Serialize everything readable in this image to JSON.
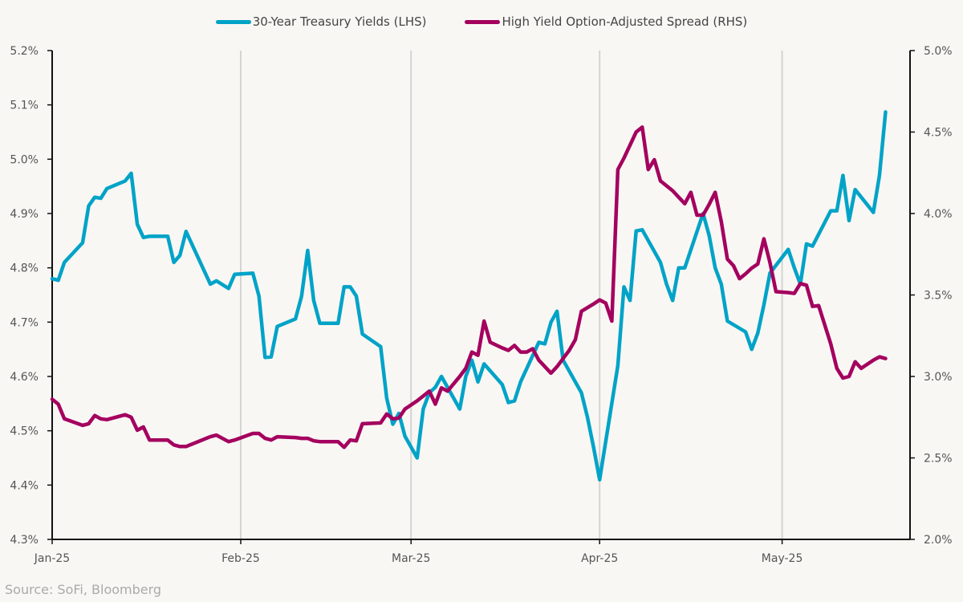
{
  "chart_data": {
    "type": "line",
    "title": "",
    "source": "Source: SoFi, Bloomberg",
    "x_unit": "days since 2025-01-01",
    "x_ticks": [
      {
        "day": 0,
        "label": "Jan-25"
      },
      {
        "day": 31,
        "label": "Feb-25"
      },
      {
        "day": 59,
        "label": "Mar-25"
      },
      {
        "day": 90,
        "label": "Apr-25"
      },
      {
        "day": 120,
        "label": "May-25"
      }
    ],
    "x_range": [
      0,
      141
    ],
    "y_left": {
      "label": "30-Year Treasury Yields (LHS)",
      "range": [
        4.3,
        5.2
      ],
      "ticks": [
        "4.3%",
        "4.4%",
        "4.5%",
        "4.6%",
        "4.7%",
        "4.8%",
        "4.9%",
        "5.0%",
        "5.1%",
        "5.2%"
      ],
      "tick_values": [
        4.3,
        4.4,
        4.5,
        4.6,
        4.7,
        4.8,
        4.9,
        5.0,
        5.1,
        5.2
      ]
    },
    "y_right": {
      "label": "High Yield Option-Adjusted Spread (RHS)",
      "range": [
        2.0,
        5.0
      ],
      "ticks": [
        "2.0%",
        "2.5%",
        "3.0%",
        "3.5%",
        "4.0%",
        "4.5%",
        "5.0%"
      ],
      "tick_values": [
        2.0,
        2.5,
        3.0,
        3.5,
        4.0,
        4.5,
        5.0
      ]
    },
    "legend_position": "top-center",
    "grid": "vertical at month starts",
    "series": [
      {
        "name": "30-Year Treasury Yields (LHS)",
        "axis": "left",
        "color": "#00a3c7",
        "points": [
          [
            0,
            4.78
          ],
          [
            1,
            4.777
          ],
          [
            2,
            4.81
          ],
          [
            5,
            4.846
          ],
          [
            6,
            4.914
          ],
          [
            7,
            4.93
          ],
          [
            8,
            4.928
          ],
          [
            9,
            4.946
          ],
          [
            12,
            4.96
          ],
          [
            13,
            4.974
          ],
          [
            14,
            4.88
          ],
          [
            15,
            4.856
          ],
          [
            16,
            4.858
          ],
          [
            19,
            4.858
          ],
          [
            20,
            4.81
          ],
          [
            21,
            4.823
          ],
          [
            22,
            4.867
          ],
          [
            26,
            4.77
          ],
          [
            27,
            4.776
          ],
          [
            29,
            4.762
          ],
          [
            30,
            4.788
          ],
          [
            33,
            4.79
          ],
          [
            34,
            4.748
          ],
          [
            35,
            4.635
          ],
          [
            36,
            4.636
          ],
          [
            37,
            4.692
          ],
          [
            40,
            4.706
          ],
          [
            41,
            4.748
          ],
          [
            42,
            4.832
          ],
          [
            43,
            4.74
          ],
          [
            44,
            4.698
          ],
          [
            47,
            4.698
          ],
          [
            48,
            4.765
          ],
          [
            49,
            4.765
          ],
          [
            50,
            4.748
          ],
          [
            51,
            4.678
          ],
          [
            54,
            4.655
          ],
          [
            55,
            4.56
          ],
          [
            56,
            4.512
          ],
          [
            57,
            4.532
          ],
          [
            58,
            4.49
          ],
          [
            60,
            4.45
          ],
          [
            61,
            4.54
          ],
          [
            62,
            4.57
          ],
          [
            63,
            4.58
          ],
          [
            64,
            4.6
          ],
          [
            67,
            4.54
          ],
          [
            68,
            4.6
          ],
          [
            69,
            4.63
          ],
          [
            70,
            4.59
          ],
          [
            71,
            4.623
          ],
          [
            74,
            4.585
          ],
          [
            75,
            4.552
          ],
          [
            76,
            4.555
          ],
          [
            77,
            4.59
          ],
          [
            80,
            4.663
          ],
          [
            81,
            4.66
          ],
          [
            82,
            4.7
          ],
          [
            83,
            4.72
          ],
          [
            84,
            4.63
          ],
          [
            87,
            4.57
          ],
          [
            88,
            4.525
          ],
          [
            89,
            4.47
          ],
          [
            90,
            4.41
          ],
          [
            93,
            4.62
          ],
          [
            94,
            4.765
          ],
          [
            95,
            4.74
          ],
          [
            96,
            4.868
          ],
          [
            97,
            4.87
          ],
          [
            100,
            4.81
          ],
          [
            101,
            4.77
          ],
          [
            102,
            4.74
          ],
          [
            103,
            4.8
          ],
          [
            104,
            4.8
          ],
          [
            107,
            4.9
          ],
          [
            108,
            4.86
          ],
          [
            109,
            4.8
          ],
          [
            110,
            4.77
          ],
          [
            111,
            4.702
          ],
          [
            114,
            4.682
          ],
          [
            115,
            4.65
          ],
          [
            116,
            4.68
          ],
          [
            117,
            4.732
          ],
          [
            118,
            4.79
          ],
          [
            121,
            4.834
          ],
          [
            122,
            4.8
          ],
          [
            123,
            4.77
          ],
          [
            124,
            4.844
          ],
          [
            125,
            4.84
          ],
          [
            128,
            4.905
          ],
          [
            129,
            4.905
          ],
          [
            130,
            4.97
          ],
          [
            131,
            4.887
          ],
          [
            132,
            4.944
          ],
          [
            135,
            4.902
          ],
          [
            136,
            4.97
          ],
          [
            137,
            5.087
          ]
        ]
      },
      {
        "name": "High Yield Option-Adjusted Spread (RHS)",
        "axis": "right",
        "color": "#a4005f",
        "points": [
          [
            0,
            2.86
          ],
          [
            1,
            2.83
          ],
          [
            2,
            2.74
          ],
          [
            5,
            2.7
          ],
          [
            6,
            2.71
          ],
          [
            7,
            2.76
          ],
          [
            8,
            2.74
          ],
          [
            9,
            2.735
          ],
          [
            12,
            2.765
          ],
          [
            13,
            2.75
          ],
          [
            14,
            2.67
          ],
          [
            15,
            2.69
          ],
          [
            16,
            2.61
          ],
          [
            19,
            2.61
          ],
          [
            20,
            2.58
          ],
          [
            21,
            2.57
          ],
          [
            22,
            2.57
          ],
          [
            26,
            2.63
          ],
          [
            27,
            2.64
          ],
          [
            29,
            2.6
          ],
          [
            30,
            2.61
          ],
          [
            33,
            2.65
          ],
          [
            34,
            2.65
          ],
          [
            35,
            2.62
          ],
          [
            36,
            2.61
          ],
          [
            37,
            2.63
          ],
          [
            40,
            2.625
          ],
          [
            41,
            2.62
          ],
          [
            42,
            2.62
          ],
          [
            43,
            2.605
          ],
          [
            44,
            2.6
          ],
          [
            47,
            2.6
          ],
          [
            48,
            2.565
          ],
          [
            49,
            2.61
          ],
          [
            50,
            2.605
          ],
          [
            51,
            2.71
          ],
          [
            54,
            2.715
          ],
          [
            55,
            2.77
          ],
          [
            56,
            2.74
          ],
          [
            57,
            2.745
          ],
          [
            58,
            2.8
          ],
          [
            60,
            2.85
          ],
          [
            61,
            2.88
          ],
          [
            62,
            2.91
          ],
          [
            63,
            2.83
          ],
          [
            64,
            2.93
          ],
          [
            65,
            2.91
          ],
          [
            67,
            3.0
          ],
          [
            68,
            3.05
          ],
          [
            69,
            3.15
          ],
          [
            70,
            3.13
          ],
          [
            71,
            3.34
          ],
          [
            72,
            3.21
          ],
          [
            74,
            3.175
          ],
          [
            75,
            3.16
          ],
          [
            76,
            3.19
          ],
          [
            77,
            3.15
          ],
          [
            78,
            3.15
          ],
          [
            79,
            3.17
          ],
          [
            80,
            3.1
          ],
          [
            81,
            3.06
          ],
          [
            82,
            3.02
          ],
          [
            83,
            3.06
          ],
          [
            85,
            3.16
          ],
          [
            86,
            3.225
          ],
          [
            87,
            3.4
          ],
          [
            89,
            3.445
          ],
          [
            90,
            3.47
          ],
          [
            91,
            3.45
          ],
          [
            92,
            3.34
          ],
          [
            93,
            4.27
          ],
          [
            94,
            4.34
          ],
          [
            96,
            4.5
          ],
          [
            97,
            4.53
          ],
          [
            98,
            4.27
          ],
          [
            99,
            4.33
          ],
          [
            100,
            4.2
          ],
          [
            102,
            4.14
          ],
          [
            103,
            4.1
          ],
          [
            104,
            4.06
          ],
          [
            105,
            4.13
          ],
          [
            106,
            3.99
          ],
          [
            107,
            3.99
          ],
          [
            108,
            4.055
          ],
          [
            109,
            4.13
          ],
          [
            110,
            3.95
          ],
          [
            111,
            3.72
          ],
          [
            112,
            3.68
          ],
          [
            113,
            3.6
          ],
          [
            114,
            3.63
          ],
          [
            115,
            3.665
          ],
          [
            116,
            3.69
          ],
          [
            117,
            3.845
          ],
          [
            118,
            3.7
          ],
          [
            119,
            3.52
          ],
          [
            121,
            3.515
          ],
          [
            122,
            3.51
          ],
          [
            123,
            3.57
          ],
          [
            124,
            3.56
          ],
          [
            125,
            3.43
          ],
          [
            126,
            3.435
          ],
          [
            128,
            3.2
          ],
          [
            129,
            3.05
          ],
          [
            130,
            2.99
          ],
          [
            131,
            3.0
          ],
          [
            132,
            3.09
          ],
          [
            133,
            3.05
          ],
          [
            135,
            3.1
          ],
          [
            136,
            3.12
          ],
          [
            137,
            3.11
          ]
        ]
      }
    ]
  }
}
